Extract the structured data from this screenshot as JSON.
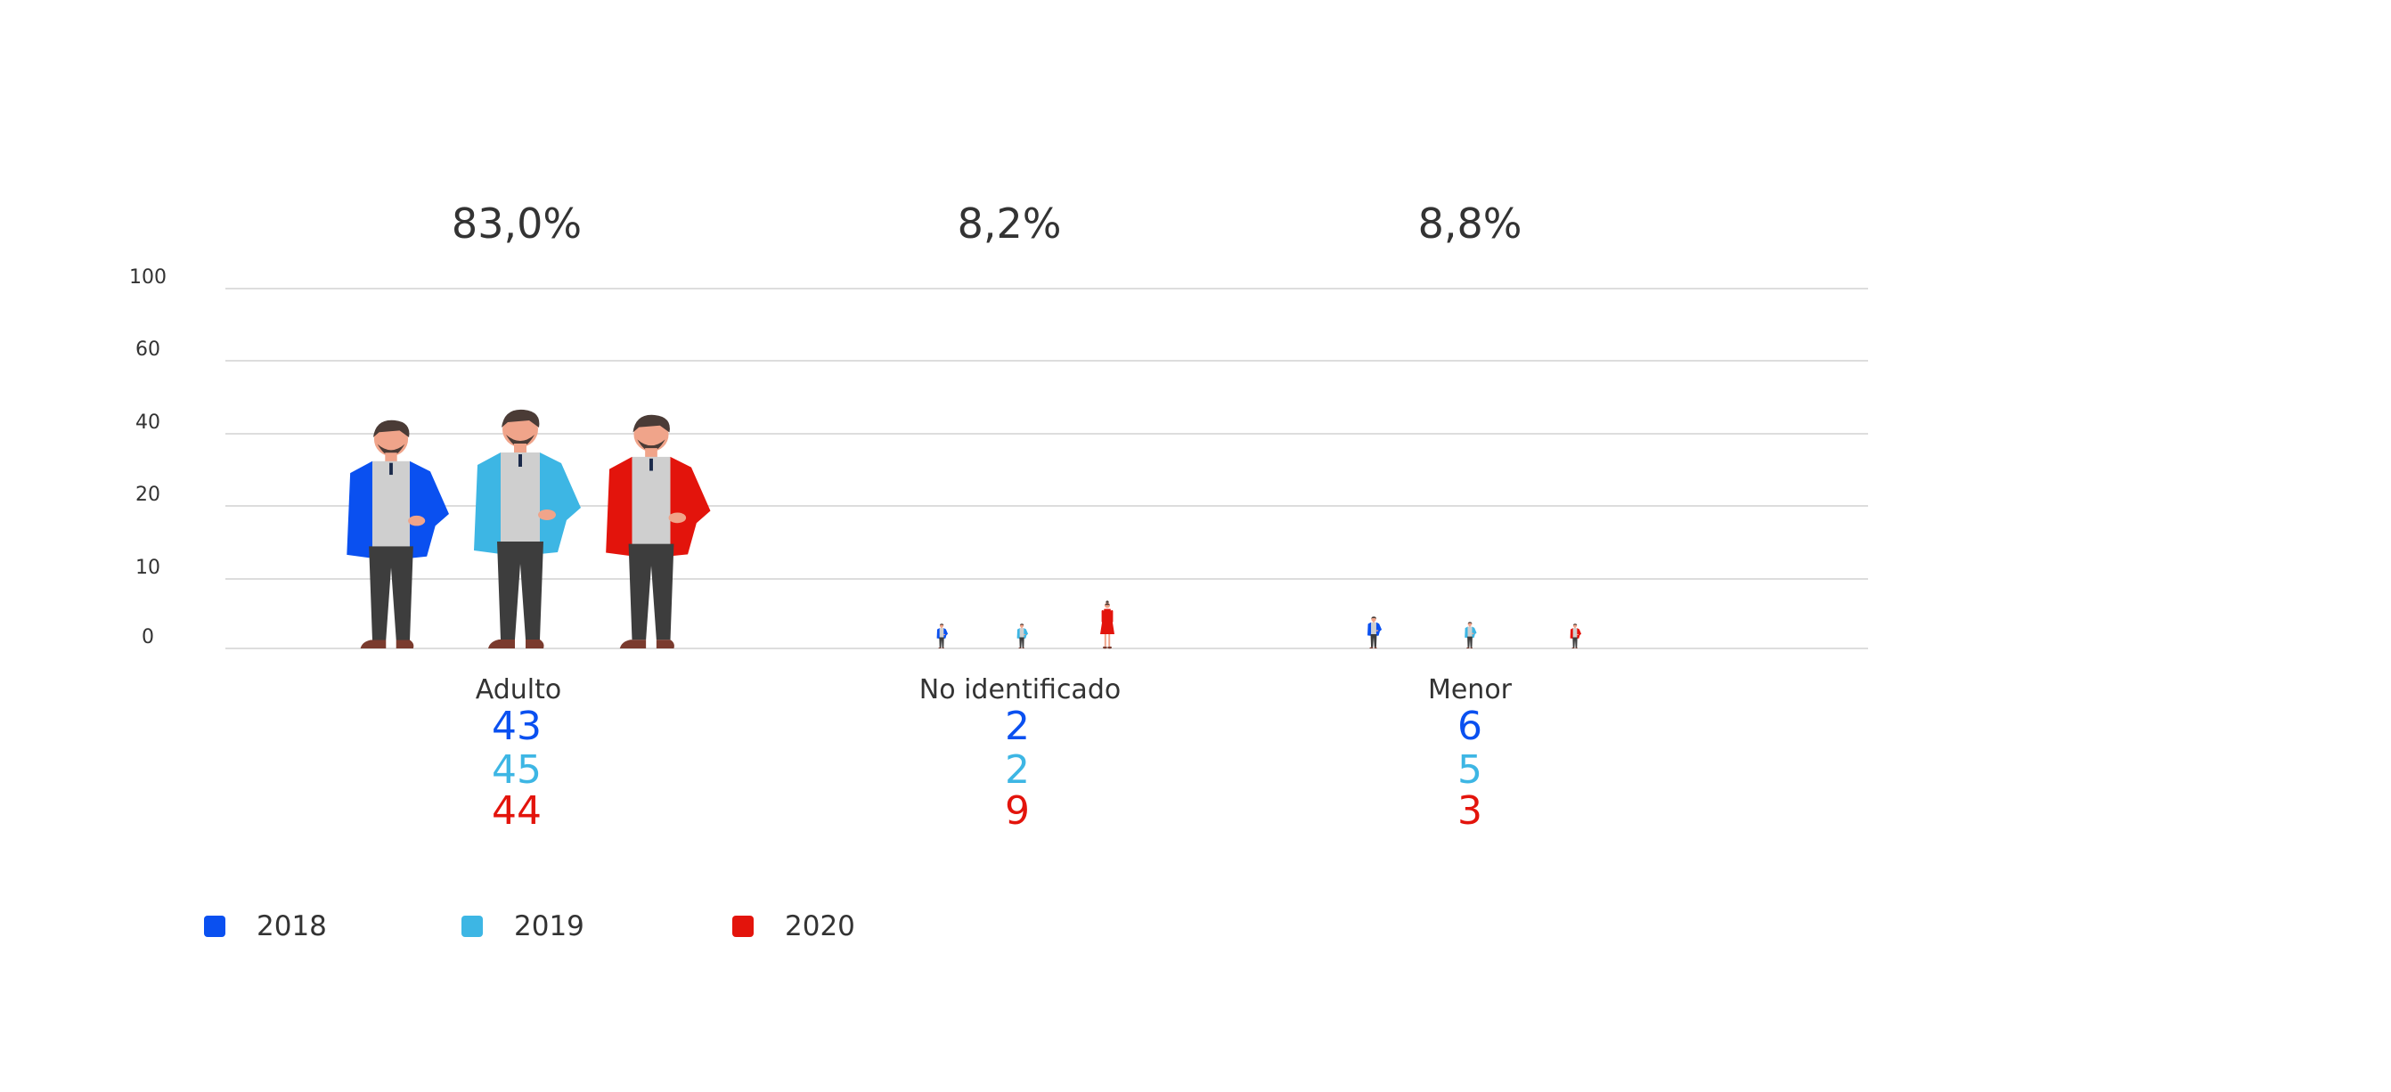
{
  "colors": {
    "2018": "#0a50f0",
    "2019": "#3db6e4",
    "2020": "#e3140c",
    "grid": "#dddddd",
    "text": "#333333"
  },
  "chart_data": {
    "type": "bar",
    "title": "",
    "xlabel": "",
    "ylabel": "",
    "y_ticks": [
      "0",
      "10",
      "20",
      "40",
      "60",
      "100"
    ],
    "grid": true,
    "legend_position": "bottom-left",
    "categories": [
      "Adulto",
      "No identificado",
      "Menor"
    ],
    "percent_labels": [
      "83,0%",
      "8,2%",
      "8,8%"
    ],
    "series": [
      {
        "name": "2018",
        "values": [
          43,
          2,
          6
        ]
      },
      {
        "name": "2019",
        "values": [
          45,
          2,
          5
        ]
      },
      {
        "name": "2020",
        "values": [
          44,
          9,
          3
        ]
      }
    ],
    "value_labels": [
      [
        "43",
        "2",
        "6"
      ],
      [
        "45",
        "2",
        "5"
      ],
      [
        "44",
        "9",
        "3"
      ]
    ]
  }
}
